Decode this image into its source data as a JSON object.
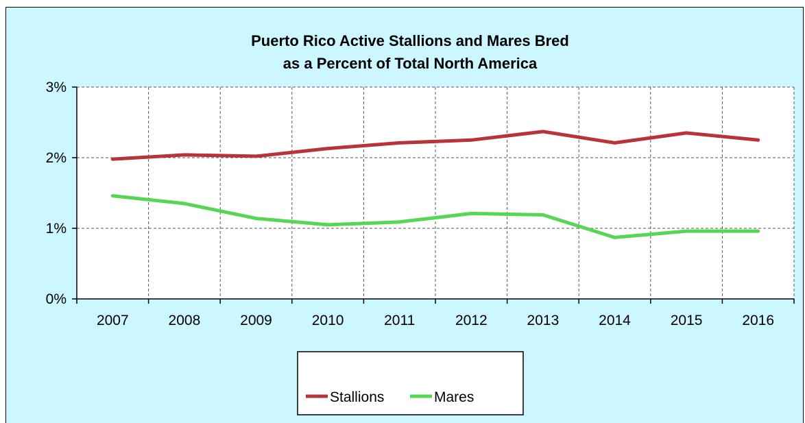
{
  "chart_data": {
    "type": "line",
    "title_line1": "Puerto Rico Active Stallions and Mares Bred",
    "title_line2": "as a Percent of Total North America",
    "x": [
      "2007",
      "2008",
      "2009",
      "2010",
      "2011",
      "2012",
      "2013",
      "2014",
      "2015",
      "2016"
    ],
    "y_ticks": [
      "0%",
      "1%",
      "2%",
      "3%"
    ],
    "ylim": [
      0,
      3
    ],
    "grid": true,
    "legend_position": "bottom-center",
    "series": [
      {
        "name": "Stallions",
        "color": "#b8333a",
        "values": [
          1.98,
          2.04,
          2.02,
          2.13,
          2.21,
          2.25,
          2.37,
          2.21,
          2.35,
          2.25
        ]
      },
      {
        "name": "Mares",
        "color": "#55d655",
        "values": [
          1.46,
          1.35,
          1.14,
          1.05,
          1.09,
          1.21,
          1.19,
          0.87,
          0.96,
          0.96
        ]
      }
    ]
  }
}
